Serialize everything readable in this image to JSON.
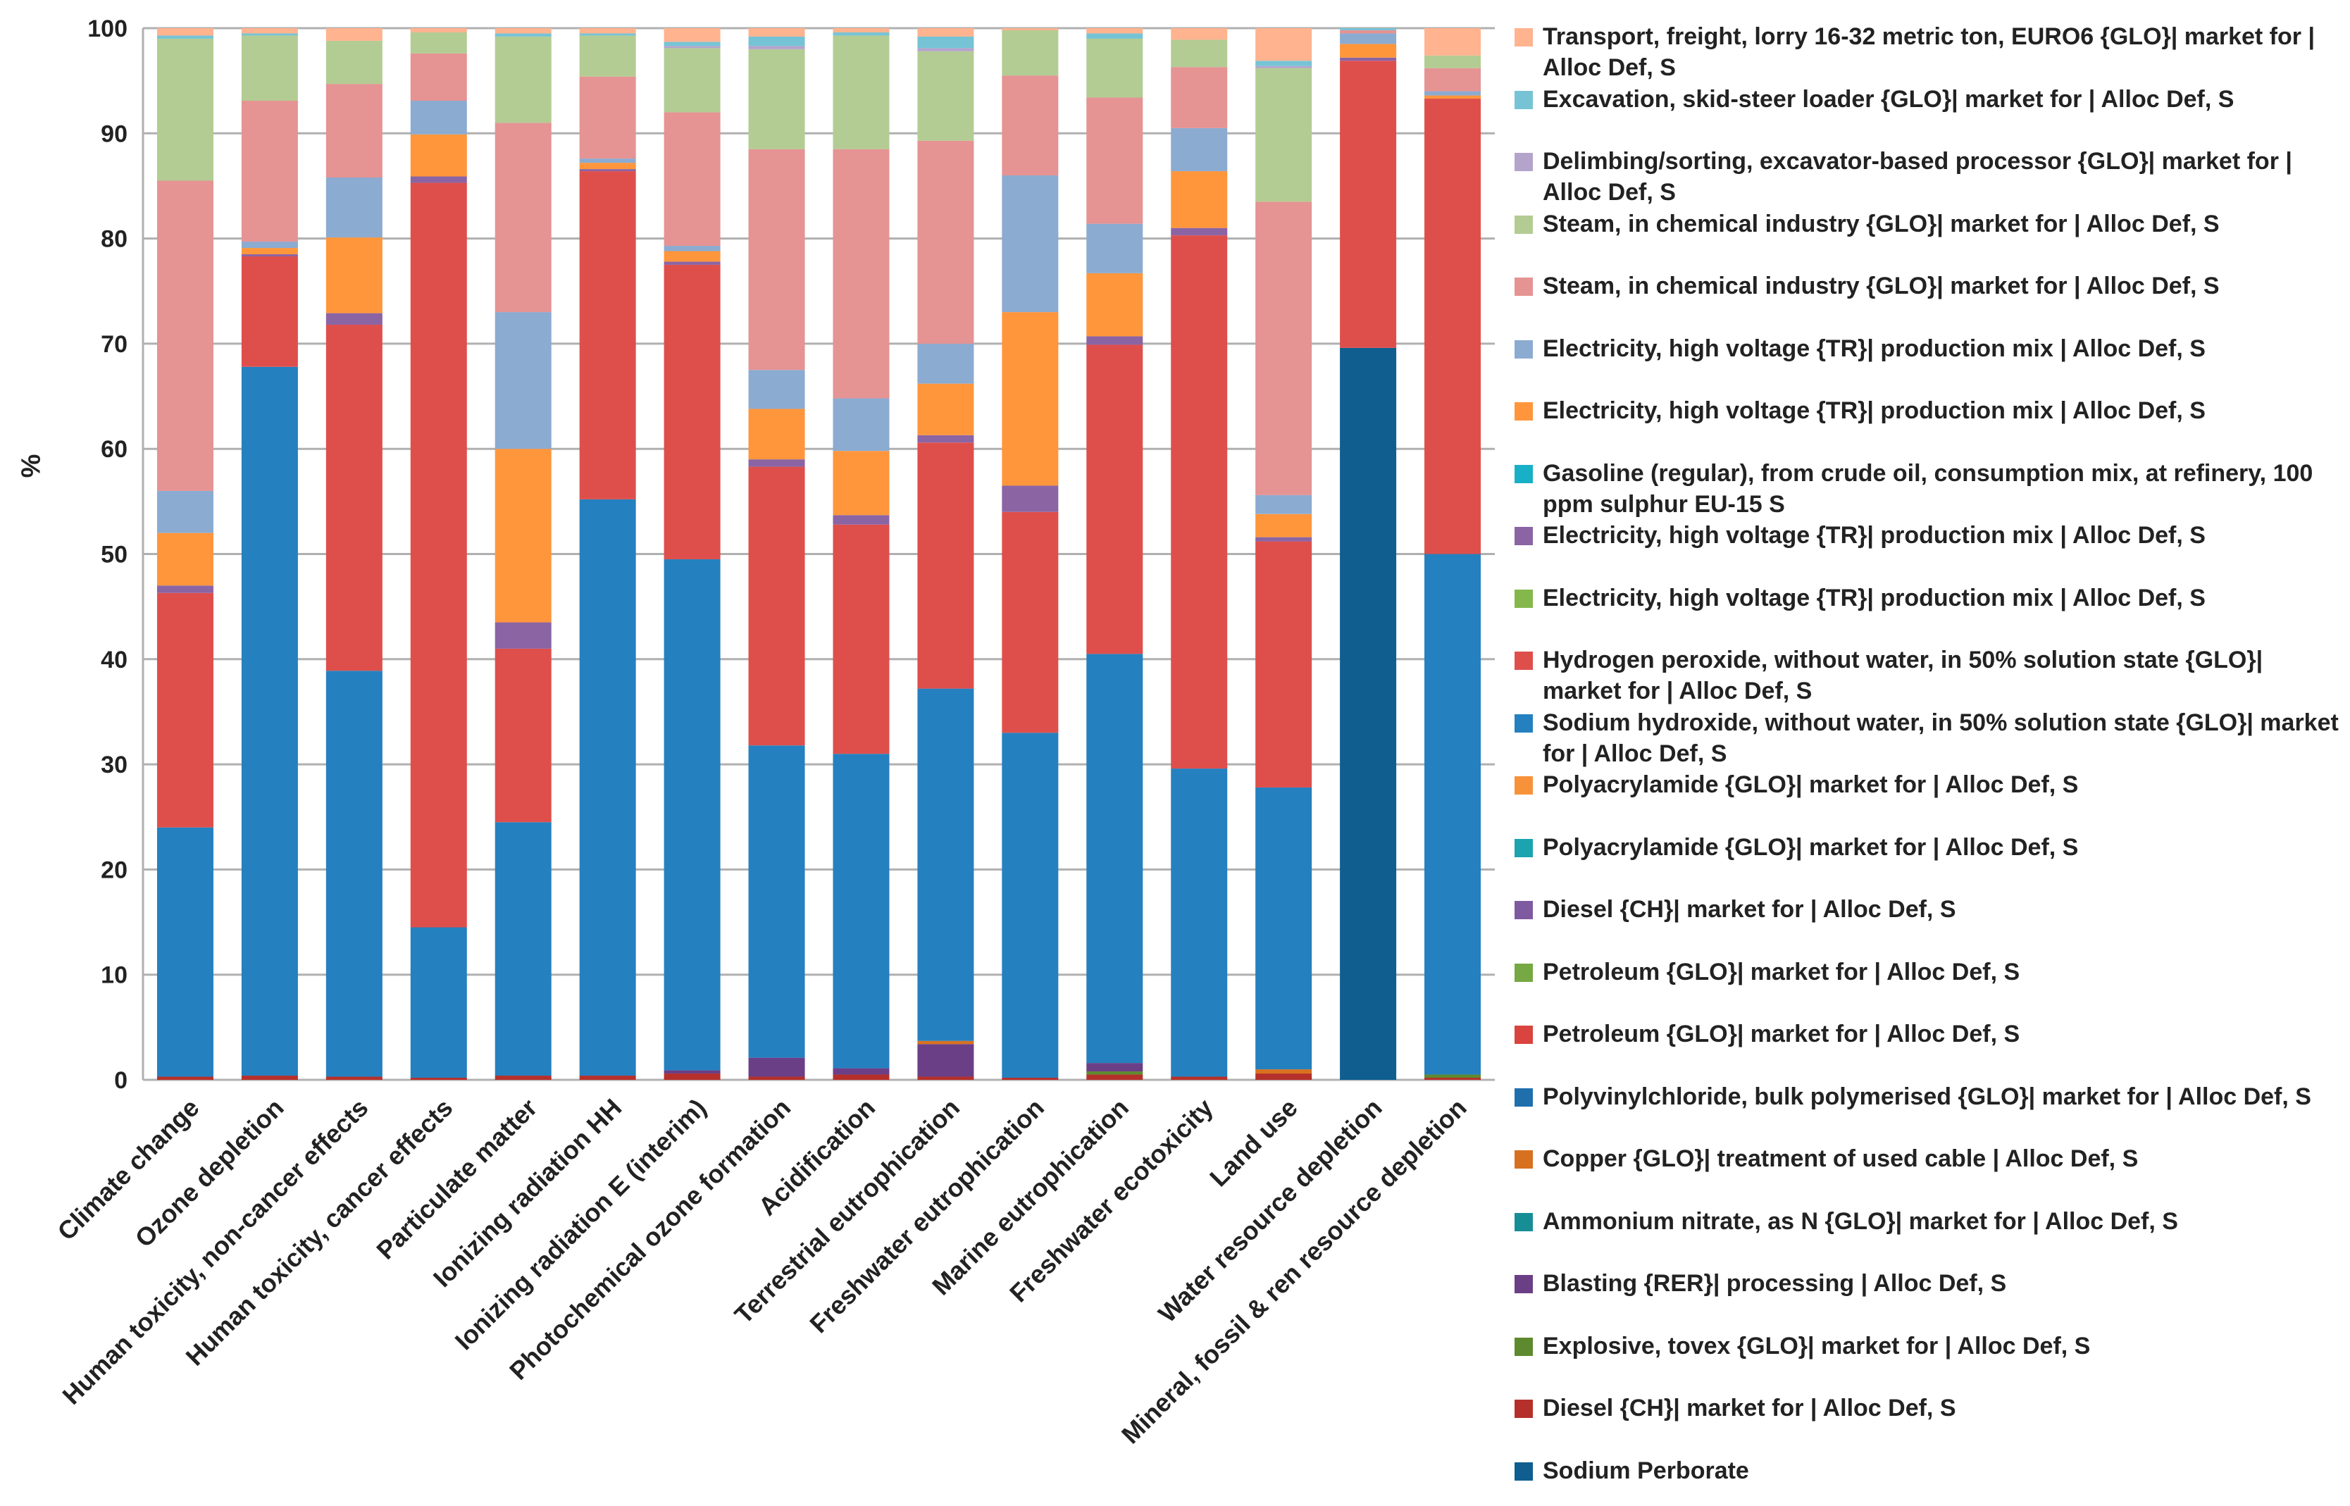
{
  "chart_data": {
    "type": "bar",
    "stacked": true,
    "title": "",
    "xlabel": "",
    "ylabel": "%",
    "ylim": [
      0,
      100
    ],
    "yticks": [
      0,
      10,
      20,
      30,
      40,
      50,
      60,
      70,
      80,
      90,
      100
    ],
    "grid": true,
    "legend_position": "right",
    "categories": [
      "Climate change",
      "Ozone depletion",
      "Human toxicity, non-cancer effects",
      "Human toxicity, cancer effects",
      "Particulate matter",
      "Ionizing radiation HH",
      "Ionizing radiation E (interim)",
      "Photochemical ozone formation",
      "Acidification",
      "Terrestrial eutrophication",
      "Freshwater eutrophication",
      "Marine eutrophication",
      "Freshwater ecotoxicity",
      "Land use",
      "Water resource depletion",
      "Mineral, fossil & ren resource depletion"
    ],
    "series": [
      {
        "name": "Sodium Perborate",
        "color": "#0F5E8F",
        "values": [
          0,
          0,
          0,
          0,
          0,
          0,
          0,
          0,
          0,
          0,
          0,
          0,
          0,
          0,
          69.6,
          0
        ]
      },
      {
        "name": "Diesel {CH}| market for | Alloc Def, S",
        "color": "#B5302A",
        "values": [
          0.3,
          0.4,
          0.3,
          0.2,
          0.4,
          0.4,
          0.6,
          0.3,
          0.5,
          0.3,
          0.2,
          0.5,
          0.3,
          0.6,
          0,
          0.2
        ]
      },
      {
        "name": "Explosive, tovex {GLO}| market for | Alloc Def, S",
        "color": "#5E8A2F",
        "values": [
          0,
          0,
          0,
          0,
          0,
          0,
          0,
          0,
          0,
          0,
          0,
          0.3,
          0,
          0,
          0,
          0.3
        ]
      },
      {
        "name": "Blasting {RER}| processing | Alloc Def, S",
        "color": "#6B3F86",
        "values": [
          0,
          0,
          0,
          0,
          0,
          0,
          0.3,
          1.8,
          0.6,
          3.1,
          0,
          0.8,
          0,
          0,
          0,
          0
        ]
      },
      {
        "name": "Ammonium nitrate, as N {GLO}| market for | Alloc Def, S",
        "color": "#178E95",
        "values": [
          0,
          0,
          0,
          0,
          0,
          0,
          0,
          0,
          0,
          0,
          0,
          0,
          0,
          0,
          0,
          0
        ]
      },
      {
        "name": "Copper {GLO}| treatment of used cable | Alloc Def, S",
        "color": "#D8711F",
        "values": [
          0,
          0,
          0,
          0,
          0,
          0,
          0,
          0,
          0,
          0.3,
          0,
          0,
          0,
          0.4,
          0,
          0
        ]
      },
      {
        "name": "Polyvinylchloride, bulk polymerised {GLO}| market for | Alloc Def, S",
        "color": "#1F6FAD",
        "values": [
          0,
          0,
          0,
          0,
          0,
          0,
          0,
          0,
          0,
          0,
          0,
          0,
          0,
          0,
          0,
          0
        ]
      },
      {
        "name": "Petroleum {GLO}| market for | Alloc Def, S",
        "color": "#D9443F",
        "values": [
          0,
          0,
          0,
          0,
          0,
          0,
          0,
          0,
          0,
          0,
          0,
          0,
          0,
          0,
          0,
          0
        ]
      },
      {
        "name": "Petroleum {GLO}| market for | Alloc Def, S",
        "color": "#76A844",
        "values": [
          0,
          0,
          0,
          0,
          0,
          0,
          0,
          0,
          0,
          0,
          0,
          0,
          0,
          0,
          0,
          0
        ]
      },
      {
        "name": "Diesel {CH}| market for | Alloc Def, S",
        "color": "#7E5AA0",
        "values": [
          0,
          0,
          0,
          0,
          0,
          0,
          0,
          0,
          0,
          0,
          0,
          0,
          0,
          0,
          0,
          0
        ]
      },
      {
        "name": "Polyacrylamide {GLO}| market for | Alloc Def, S",
        "color": "#1BA3B0",
        "values": [
          0,
          0,
          0,
          0,
          0,
          0,
          0,
          0,
          0,
          0,
          0,
          0,
          0,
          0,
          0,
          0
        ]
      },
      {
        "name": "Polyacrylamide {GLO}| market for | Alloc Def, S",
        "color": "#F8923A",
        "values": [
          0,
          0,
          0,
          0,
          0,
          0,
          0,
          0,
          0,
          0,
          0,
          0,
          0,
          0,
          0,
          0
        ]
      },
      {
        "name": "Sodium hydroxide, without water, in 50% solution state {GLO}| market for | Alloc Def, S",
        "color": "#2580BF",
        "values": [
          23.7,
          67.4,
          38.6,
          14.3,
          24.1,
          54.8,
          48.6,
          29.7,
          29.9,
          33.5,
          32.8,
          38.9,
          29.3,
          26.8,
          0,
          49.5
        ]
      },
      {
        "name": "Hydrogen peroxide, without water, in 50% solution state {GLO}| market for | Alloc Def, S",
        "color": "#DE4F4C",
        "values": [
          22.3,
          10.5,
          32.9,
          70.8,
          16.5,
          31.2,
          28,
          26.5,
          21.8,
          23.4,
          21,
          29.4,
          50.7,
          23.4,
          27.3,
          43.3
        ]
      },
      {
        "name": "Electricity, high voltage {TR}| production mix | Alloc Def, S",
        "color": "#84B84C",
        "values": [
          0,
          0,
          0,
          0,
          0,
          0,
          0,
          0,
          0,
          0,
          0,
          0,
          0,
          0,
          0,
          0
        ]
      },
      {
        "name": "Electricity, high voltage {TR}| production mix | Alloc Def, S",
        "color": "#8B64A4",
        "values": [
          0.7,
          0.2,
          1.1,
          0.6,
          2.5,
          0.2,
          0.3,
          0.7,
          0.9,
          0.7,
          2.5,
          0.8,
          0.7,
          0.4,
          0.3,
          0
        ]
      },
      {
        "name": "Gasoline (regular), from crude oil, consumption mix, at refinery, 100 ppm sulphur EU-15 S",
        "color": "#17B0C7",
        "values": [
          0,
          0,
          0,
          0,
          0,
          0,
          0,
          0,
          0,
          0,
          0,
          0,
          0,
          0,
          0,
          0
        ]
      },
      {
        "name": "Electricity, high voltage {TR}| production mix | Alloc Def, S",
        "color": "#FF963C",
        "values": [
          5,
          0.6,
          7.2,
          4,
          16.5,
          0.6,
          1,
          4.8,
          6.1,
          4.9,
          16.5,
          6,
          5.4,
          2.2,
          1.3,
          0.3
        ]
      },
      {
        "name": "Electricity, high voltage {TR}| production mix | Alloc Def, S",
        "color": "#8BABD1",
        "values": [
          4,
          0.6,
          5.7,
          3.2,
          13,
          0.4,
          0.5,
          3.7,
          5,
          3.8,
          13,
          4.7,
          4.1,
          1.8,
          1,
          0.4
        ]
      },
      {
        "name": "Steam, in chemical industry {GLO}| market for | Alloc Def, S",
        "color": "#E59393",
        "values": [
          29.5,
          13.4,
          8.9,
          4.5,
          18,
          7.8,
          12.7,
          21,
          23.7,
          19.3,
          9.5,
          12,
          5.8,
          27.9,
          0.3,
          2.2
        ]
      },
      {
        "name": "Steam, in chemical industry {GLO}| market for | Alloc Def, S",
        "color": "#B3CC93",
        "values": [
          13.5,
          6.2,
          4.1,
          2,
          8.2,
          3.9,
          6.1,
          9.5,
          10.8,
          8.5,
          4.3,
          5.6,
          2.6,
          12.7,
          0,
          1.2
        ]
      },
      {
        "name": "Delimbing/sorting, excavator-based processor {GLO}| market for | Alloc Def, S",
        "color": "#B4A4CC",
        "values": [
          0,
          0,
          0,
          0,
          0,
          0,
          0.2,
          0.3,
          0,
          0.3,
          0,
          0,
          0,
          0.2,
          0,
          0
        ]
      },
      {
        "name": "Excavation, skid-steer loader {GLO}| market for | Alloc Def, S",
        "color": "#77C3D6",
        "values": [
          0.3,
          0.2,
          0,
          0,
          0.3,
          0.2,
          0.4,
          0.9,
          0.3,
          1.1,
          0,
          0.5,
          0,
          0.5,
          0.2,
          0
        ]
      },
      {
        "name": "Transport, freight, lorry 16-32 metric ton, EURO6 {GLO}| market for | Alloc Def, S",
        "color": "#FFB38F",
        "values": [
          0.7,
          0.5,
          1.2,
          0.4,
          0.5,
          0.5,
          1.3,
          0.8,
          0.4,
          0.8,
          0.2,
          0.5,
          1.1,
          3.1,
          0,
          2.6
        ]
      }
    ]
  }
}
